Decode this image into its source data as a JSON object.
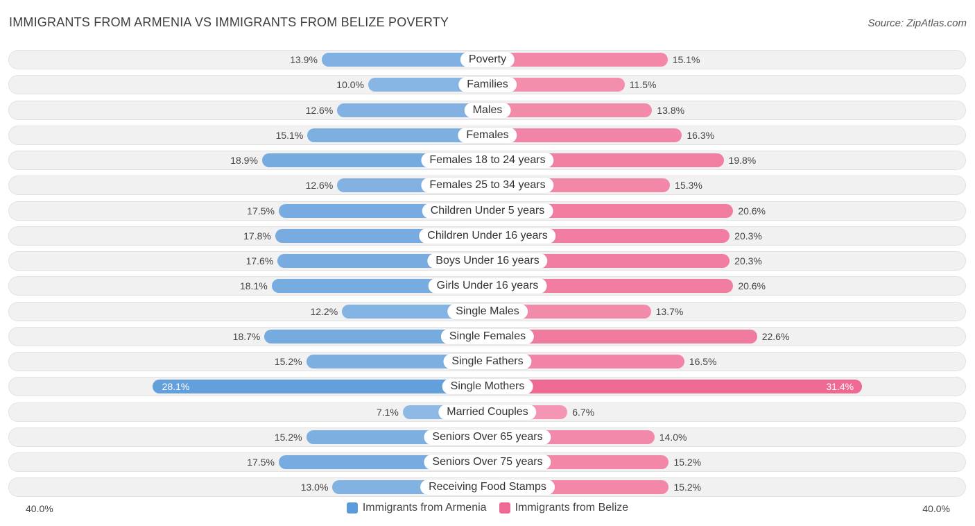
{
  "title": "IMMIGRANTS FROM ARMENIA VS IMMIGRANTS FROM BELIZE POVERTY",
  "source": "Source: ZipAtlas.com",
  "colors": {
    "left_strong": "#5b9bd9",
    "left_light": "#b3cfee",
    "right_strong": "#ef6a93",
    "right_light": "#f7b5ca"
  },
  "chart_data": {
    "type": "bar",
    "orientation": "horizontal-diverging",
    "title": "IMMIGRANTS FROM ARMENIA VS IMMIGRANTS FROM BELIZE POVERTY",
    "axis": {
      "left_label": "40.0%",
      "right_label": "40.0%",
      "max": 40.0
    },
    "legend": [
      "Immigrants from Armenia",
      "Immigrants from Belize"
    ],
    "categories": [
      "Poverty",
      "Families",
      "Males",
      "Females",
      "Females 18 to 24 years",
      "Females 25 to 34 years",
      "Children Under 5 years",
      "Children Under 16 years",
      "Boys Under 16 years",
      "Girls Under 16 years",
      "Single Males",
      "Single Females",
      "Single Fathers",
      "Single Mothers",
      "Married Couples",
      "Seniors Over 65 years",
      "Seniors Over 75 years",
      "Receiving Food Stamps"
    ],
    "series": [
      {
        "name": "Immigrants from Armenia",
        "values": [
          13.9,
          10.0,
          12.6,
          15.1,
          18.9,
          12.6,
          17.5,
          17.8,
          17.6,
          18.1,
          12.2,
          18.7,
          15.2,
          28.1,
          7.1,
          15.2,
          17.5,
          13.0
        ],
        "labels": [
          "13.9%",
          "10.0%",
          "12.6%",
          "15.1%",
          "18.9%",
          "12.6%",
          "17.5%",
          "17.8%",
          "17.6%",
          "18.1%",
          "12.2%",
          "18.7%",
          "15.2%",
          "28.1%",
          "7.1%",
          "15.2%",
          "17.5%",
          "13.0%"
        ]
      },
      {
        "name": "Immigrants from Belize",
        "values": [
          15.1,
          11.5,
          13.8,
          16.3,
          19.8,
          15.3,
          20.6,
          20.3,
          20.3,
          20.6,
          13.7,
          22.6,
          16.5,
          31.4,
          6.7,
          14.0,
          15.2,
          15.2
        ],
        "labels": [
          "15.1%",
          "11.5%",
          "13.8%",
          "16.3%",
          "19.8%",
          "15.3%",
          "20.6%",
          "20.3%",
          "20.3%",
          "20.6%",
          "13.7%",
          "22.6%",
          "16.5%",
          "31.4%",
          "6.7%",
          "14.0%",
          "15.2%",
          "15.2%"
        ]
      }
    ]
  }
}
